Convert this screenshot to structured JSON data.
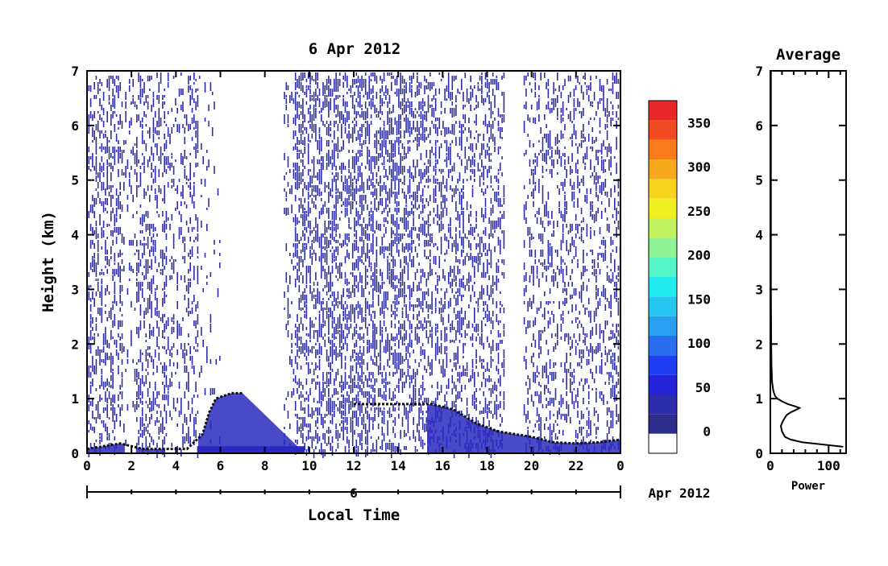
{
  "chart_data": [
    {
      "type": "heatmap",
      "title": "6 Apr 2012",
      "xlabel": "Local Time",
      "ylabel": "Height (km)",
      "xlim": [
        0,
        24
      ],
      "ylim": [
        0,
        7
      ],
      "x_ticks": [
        "0",
        "2",
        "4",
        "6",
        "8",
        "10",
        "12",
        "14",
        "16",
        "18",
        "20",
        "22",
        "0"
      ],
      "y_ticks": [
        "0",
        "1",
        "2",
        "3",
        "4",
        "5",
        "6",
        "7"
      ],
      "date_axis_day": "6",
      "date_axis_label": "Apr 2012",
      "colorbar": {
        "ticks": [
          "0",
          "50",
          "100",
          "150",
          "200",
          "250",
          "300",
          "350"
        ],
        "range": [
          -25,
          375
        ],
        "colors": [
          "#ffffff",
          "#2d2d8c",
          "#2c2cac",
          "#2323d8",
          "#1f3df0",
          "#2a6ff0",
          "#2a9ef0",
          "#26c7f0",
          "#22ecf0",
          "#56f5c8",
          "#8ef296",
          "#c2f260",
          "#f0f020",
          "#f8d31c",
          "#f8a81c",
          "#f87c1c",
          "#f04a20",
          "#e82828"
        ]
      },
      "low_level_layer_km": [
        [
          0,
          0.08
        ],
        [
          1.5,
          0.18
        ],
        [
          2.5,
          0.08
        ],
        [
          4.5,
          0.08
        ],
        [
          5.2,
          0.35
        ],
        [
          5.5,
          0.75
        ],
        [
          5.8,
          1.0
        ],
        [
          6.5,
          1.1
        ],
        [
          7,
          1.1
        ],
        [
          9.8,
          0
        ],
        [
          12,
          0.9
        ],
        [
          14.5,
          0.9
        ],
        [
          15.5,
          0.9
        ],
        [
          16.5,
          0.8
        ],
        [
          17.5,
          0.55
        ],
        [
          18.5,
          0.4
        ],
        [
          20,
          0.3
        ],
        [
          21,
          0.2
        ],
        [
          22,
          0.18
        ],
        [
          23,
          0.2
        ],
        [
          24,
          0.25
        ]
      ]
    },
    {
      "type": "line",
      "title": "Average",
      "xlabel": "Power",
      "xlim": [
        0,
        130
      ],
      "ylim": [
        0,
        7
      ],
      "x_ticks": [
        "0",
        "100"
      ],
      "y_ticks": [
        "0",
        "1",
        "2",
        "3",
        "4",
        "5",
        "6",
        "7"
      ],
      "series": [
        {
          "x": [
            125,
            90,
            55,
            35,
            25,
            20,
            18,
            22,
            28,
            35,
            45,
            50,
            42,
            30,
            20,
            12,
            8,
            5,
            3,
            2,
            1.5,
            1,
            1,
            1
          ],
          "y": [
            0.12,
            0.16,
            0.2,
            0.25,
            0.3,
            0.4,
            0.5,
            0.6,
            0.7,
            0.75,
            0.8,
            0.83,
            0.86,
            0.9,
            0.95,
            1.0,
            1.05,
            1.15,
            1.3,
            1.6,
            2.0,
            3.0,
            5.0,
            7.0
          ]
        }
      ]
    }
  ]
}
